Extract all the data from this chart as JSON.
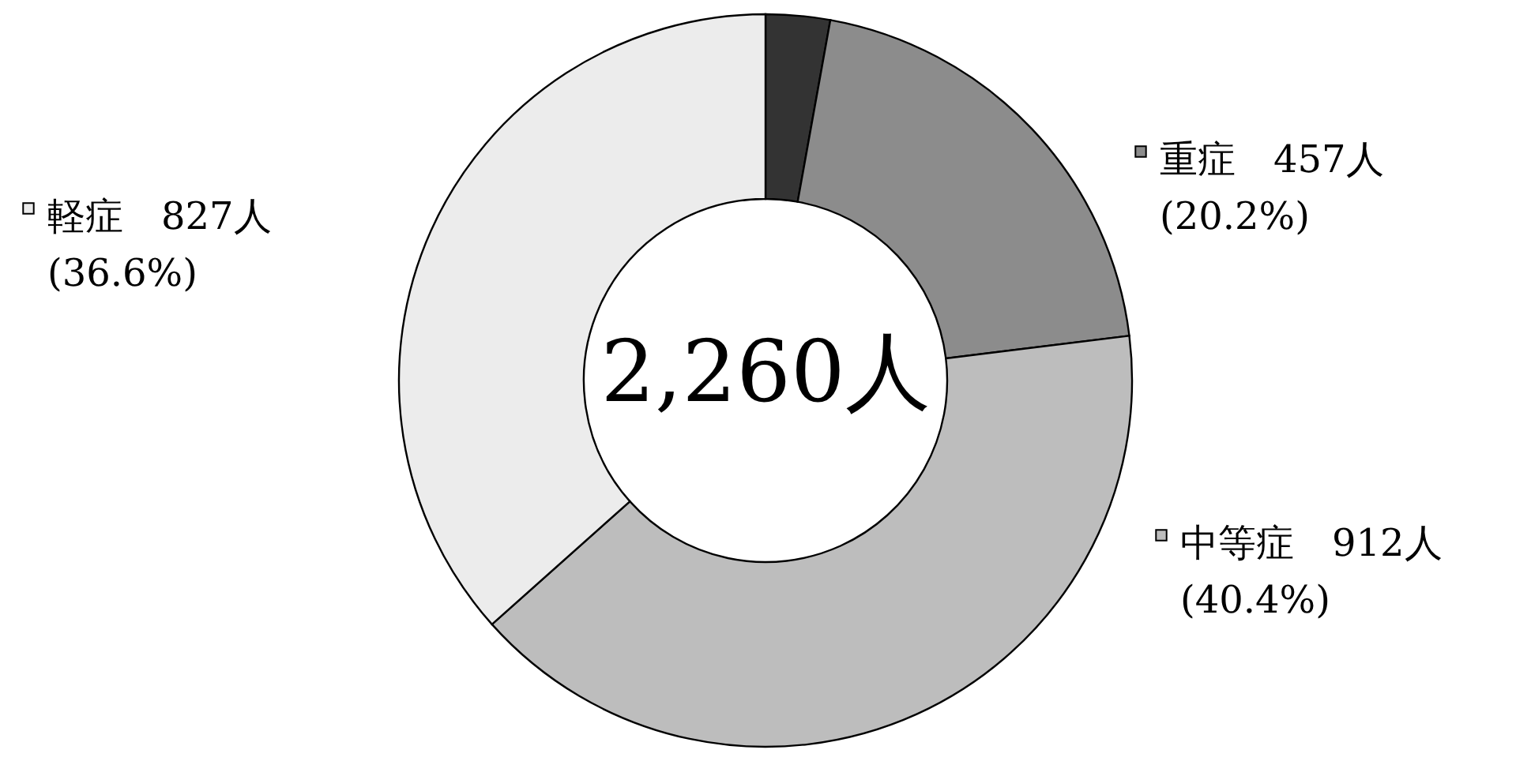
{
  "chart_data": {
    "type": "donut",
    "categories": [
      null,
      "重症",
      "中等症",
      "軽症"
    ],
    "values": [
      64,
      457,
      912,
      827
    ],
    "colors": [
      "#333333",
      "#8c8c8c",
      "#bdbdbd",
      "#ececec"
    ],
    "value_labels": [
      null,
      "457人\n(20.2%)",
      "912人\n(40.4%)",
      "827人\n(36.6%)"
    ],
    "annotations": [
      "2,260人"
    ],
    "legend": "right"
  }
}
